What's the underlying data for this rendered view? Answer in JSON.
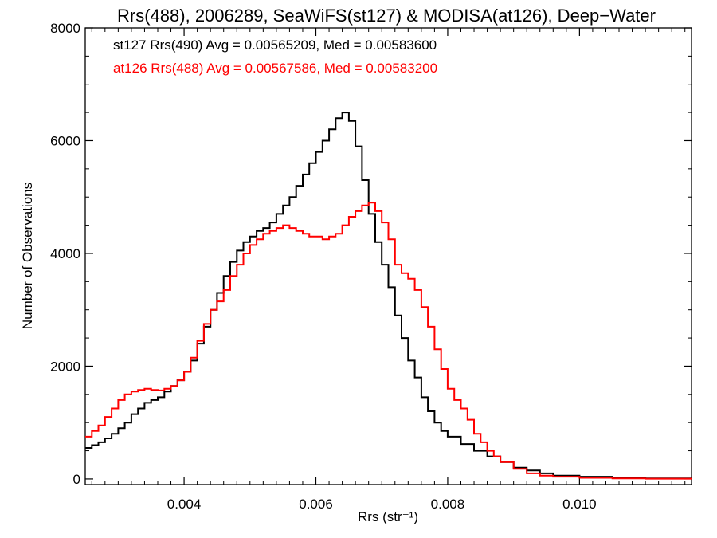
{
  "chart_data": {
    "type": "line",
    "title": "Rrs(488), 2006289, SeaWiFS(st127) & MODISA(at126), Deep−Water",
    "xlabel": "Rrs (str⁻¹)",
    "ylabel": "Number of Observations",
    "xlim": [
      0.0025,
      0.0117
    ],
    "ylim": [
      -100,
      8000
    ],
    "xticks": [
      0.004,
      0.006,
      0.008,
      0.01
    ],
    "xtick_labels": [
      "0.004",
      "0.006",
      "0.008",
      "0.010"
    ],
    "yticks": [
      0,
      2000,
      4000,
      6000,
      8000
    ],
    "ytick_labels": [
      "0",
      "2000",
      "4000",
      "6000",
      "8000"
    ],
    "grid": false,
    "legend_position": "top-left",
    "step": true,
    "series": [
      {
        "name": "st127 Rrs(490) Avg = 0.00565209, Med = 0.00583600",
        "color": "#000000",
        "x": [
          0.0025,
          0.0026,
          0.0027,
          0.0028,
          0.0029,
          0.003,
          0.0031,
          0.0032,
          0.0033,
          0.0034,
          0.0035,
          0.0036,
          0.0037,
          0.0038,
          0.0039,
          0.004,
          0.0041,
          0.0042,
          0.0043,
          0.0044,
          0.0045,
          0.0046,
          0.0047,
          0.0048,
          0.0049,
          0.005,
          0.0051,
          0.0052,
          0.0053,
          0.0054,
          0.0055,
          0.0056,
          0.0057,
          0.0058,
          0.0059,
          0.006,
          0.0061,
          0.0062,
          0.0063,
          0.0064,
          0.0065,
          0.0066,
          0.0067,
          0.0068,
          0.0069,
          0.007,
          0.0071,
          0.0072,
          0.0073,
          0.0074,
          0.0075,
          0.0076,
          0.0077,
          0.0078,
          0.0079,
          0.008,
          0.0082,
          0.0084,
          0.0086,
          0.0088,
          0.009,
          0.0092,
          0.0094,
          0.0096,
          0.01,
          0.0105,
          0.011,
          0.0117
        ],
        "y": [
          550,
          600,
          650,
          720,
          800,
          900,
          1000,
          1150,
          1250,
          1350,
          1400,
          1450,
          1550,
          1650,
          1750,
          1900,
          2100,
          2400,
          2700,
          3000,
          3300,
          3600,
          3850,
          4050,
          4200,
          4300,
          4400,
          4450,
          4550,
          4700,
          4850,
          5000,
          5200,
          5400,
          5600,
          5800,
          6000,
          6200,
          6400,
          6500,
          6350,
          5900,
          5300,
          4700,
          4200,
          3800,
          3400,
          2900,
          2500,
          2100,
          1800,
          1450,
          1200,
          1000,
          850,
          750,
          620,
          500,
          400,
          300,
          200,
          150,
          100,
          60,
          40,
          20,
          10,
          5
        ]
      },
      {
        "name": "at126 Rrs(488) Avg = 0.00567586, Med = 0.00583200",
        "color": "#ff0000",
        "x": [
          0.0025,
          0.0026,
          0.0027,
          0.0028,
          0.0029,
          0.003,
          0.0031,
          0.0032,
          0.0033,
          0.0034,
          0.0035,
          0.0036,
          0.0037,
          0.0038,
          0.0039,
          0.004,
          0.0041,
          0.0042,
          0.0043,
          0.0044,
          0.0045,
          0.0046,
          0.0047,
          0.0048,
          0.0049,
          0.005,
          0.0051,
          0.0052,
          0.0053,
          0.0054,
          0.0055,
          0.0056,
          0.0057,
          0.0058,
          0.0059,
          0.006,
          0.0061,
          0.0062,
          0.0063,
          0.0064,
          0.0065,
          0.0066,
          0.0067,
          0.0068,
          0.0069,
          0.007,
          0.0071,
          0.0072,
          0.0073,
          0.0074,
          0.0075,
          0.0076,
          0.0077,
          0.0078,
          0.0079,
          0.008,
          0.0081,
          0.0082,
          0.0083,
          0.0084,
          0.0085,
          0.0086,
          0.0087,
          0.0088,
          0.009,
          0.0092,
          0.0094,
          0.0096,
          0.01,
          0.0105,
          0.011,
          0.0117
        ],
        "y": [
          750,
          850,
          950,
          1100,
          1250,
          1400,
          1500,
          1550,
          1580,
          1600,
          1580,
          1570,
          1600,
          1650,
          1750,
          1900,
          2150,
          2450,
          2750,
          3000,
          3150,
          3350,
          3600,
          3800,
          4000,
          4150,
          4250,
          4350,
          4400,
          4450,
          4500,
          4450,
          4400,
          4350,
          4300,
          4300,
          4250,
          4300,
          4350,
          4500,
          4650,
          4750,
          4850,
          4900,
          4750,
          4550,
          4250,
          3800,
          3650,
          3550,
          3350,
          3050,
          2700,
          2300,
          1950,
          1600,
          1400,
          1250,
          1050,
          800,
          650,
          500,
          400,
          300,
          180,
          100,
          60,
          40,
          20,
          10,
          5,
          3
        ]
      }
    ]
  }
}
